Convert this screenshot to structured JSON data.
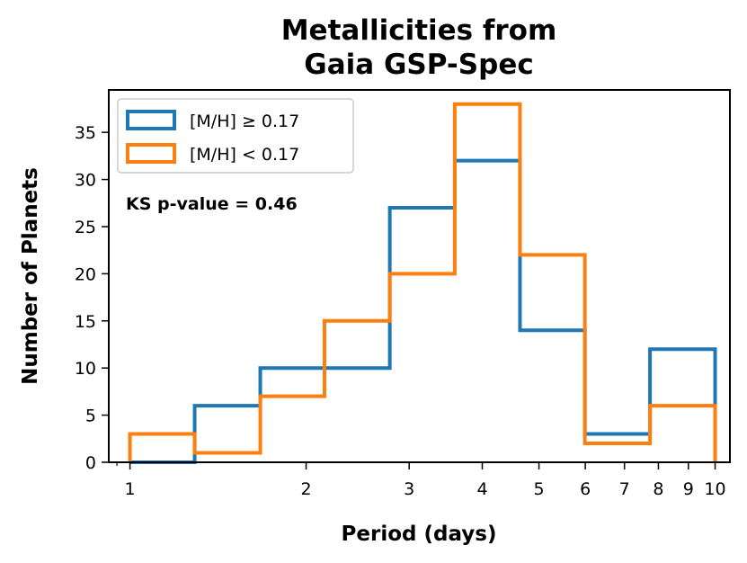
{
  "chart_data": {
    "type": "histogram",
    "title_lines": [
      "Metallicities from",
      "Gaia GSP-Spec"
    ],
    "xlabel": "Period (days)",
    "ylabel": "Number of Planets",
    "xscale": "log",
    "xlim": [
      0.92,
      10.6
    ],
    "ylim": [
      0,
      39.5
    ],
    "bin_edges": [
      1.0,
      1.29,
      1.67,
      2.15,
      2.78,
      3.59,
      4.64,
      5.99,
      7.74,
      10.0
    ],
    "x_ticks": [
      1,
      2,
      3,
      4,
      5,
      6,
      7,
      8,
      9,
      10
    ],
    "x_tick_labels": [
      "1",
      "2",
      "3",
      "4",
      "5",
      "6",
      "7",
      "8",
      "9",
      "10"
    ],
    "y_ticks": [
      0,
      5,
      10,
      15,
      20,
      25,
      30,
      35
    ],
    "y_tick_labels": [
      "0",
      "5",
      "10",
      "15",
      "20",
      "25",
      "30",
      "35"
    ],
    "series": [
      {
        "name": "[M/H] ≥ 0.17",
        "color": "#1f77b4",
        "values": [
          0,
          6,
          10,
          10,
          27,
          32,
          14,
          3,
          12
        ]
      },
      {
        "name": "[M/H] < 0.17",
        "color": "#ff7f0e",
        "values": [
          3,
          1,
          7,
          15,
          20,
          38,
          22,
          2,
          6
        ]
      }
    ],
    "legend_position": "top-left",
    "annotation": "KS p-value = 0.46"
  }
}
